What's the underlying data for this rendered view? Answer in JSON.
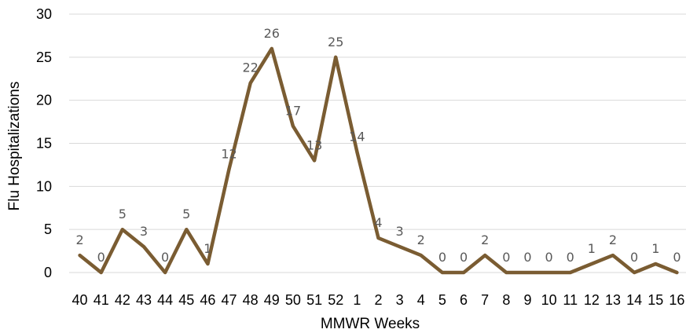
{
  "chart_data": {
    "type": "line",
    "title": "",
    "xlabel": "MMWR Weeks",
    "ylabel": "Flu Hospitalizations",
    "ylim": [
      0,
      30
    ],
    "yticks": [
      0,
      5,
      10,
      15,
      20,
      25,
      30
    ],
    "grid": true,
    "legend": "none",
    "categories": [
      "40",
      "41",
      "42",
      "43",
      "44",
      "45",
      "46",
      "47",
      "48",
      "49",
      "50",
      "51",
      "52",
      "1",
      "2",
      "3",
      "4",
      "5",
      "6",
      "7",
      "8",
      "9",
      "10",
      "11",
      "12",
      "13",
      "14",
      "15",
      "16"
    ],
    "series": [
      {
        "values": [
          2,
          0,
          5,
          3,
          0,
          5,
          1,
          12,
          22,
          26,
          17,
          13,
          25,
          14,
          4,
          3,
          2,
          0,
          0,
          2,
          0,
          0,
          0,
          0,
          1,
          2,
          0,
          1,
          0
        ],
        "color": "#7a5c32"
      }
    ]
  }
}
